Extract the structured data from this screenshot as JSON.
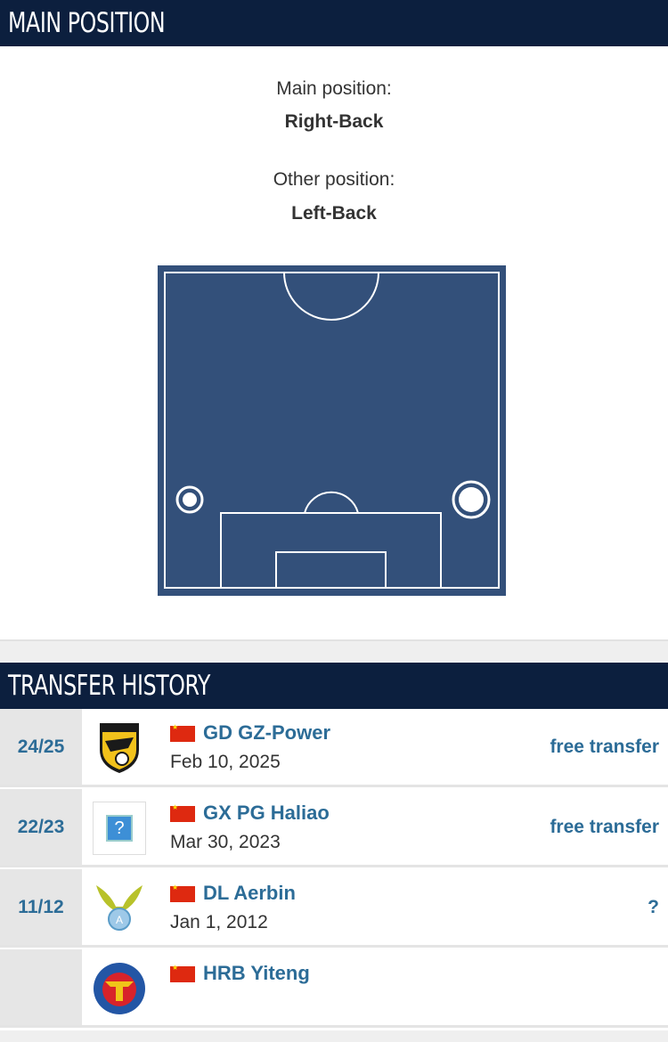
{
  "main_position": {
    "header": "MAIN POSITION",
    "main_label": "Main position:",
    "main_value": "Right-Back",
    "other_label": "Other position:",
    "other_value": "Left-Back",
    "pitch_color": "#33507a"
  },
  "transfer_history": {
    "header": "TRANSFER HISTORY",
    "rows": [
      {
        "season": "24/25",
        "club": "GD GZ-Power",
        "date": "Feb 10, 2025",
        "fee": "free transfer",
        "logo": "gz-power-crest",
        "flag": "china"
      },
      {
        "season": "22/23",
        "club": "GX PG Haliao",
        "date": "Mar 30, 2023",
        "fee": "free transfer",
        "logo": "placeholder-question",
        "flag": "china"
      },
      {
        "season": "11/12",
        "club": "DL Aerbin",
        "date": "Jan 1, 2012",
        "fee": "?",
        "logo": "dl-aerbin-crest",
        "flag": "china"
      },
      {
        "season": "",
        "club": "HRB Yiteng",
        "date": "",
        "fee": "",
        "logo": "yiteng-crest",
        "flag": "china"
      }
    ]
  }
}
